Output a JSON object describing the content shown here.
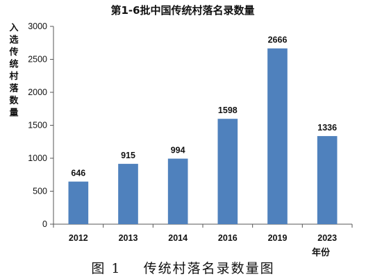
{
  "caption": "图 1    传统村落名录数量图",
  "chart_data": {
    "type": "bar",
    "title": "第1-6批中国传统村落名录数量",
    "ylabel": "入选传统村落数量",
    "xlabel": "年份",
    "categories": [
      "2012",
      "2013",
      "2014",
      "2016",
      "2019",
      "2023"
    ],
    "values": [
      646,
      915,
      994,
      1598,
      2666,
      1336
    ],
    "data_labels": [
      "646",
      "915",
      "994",
      "1598",
      "2666",
      "1336"
    ],
    "ylim": [
      0,
      3000
    ],
    "yticks": [
      0,
      500,
      1000,
      1500,
      2000,
      2500,
      3000
    ],
    "grid": false,
    "legend": "none",
    "bar_color": "#4f81bd"
  }
}
